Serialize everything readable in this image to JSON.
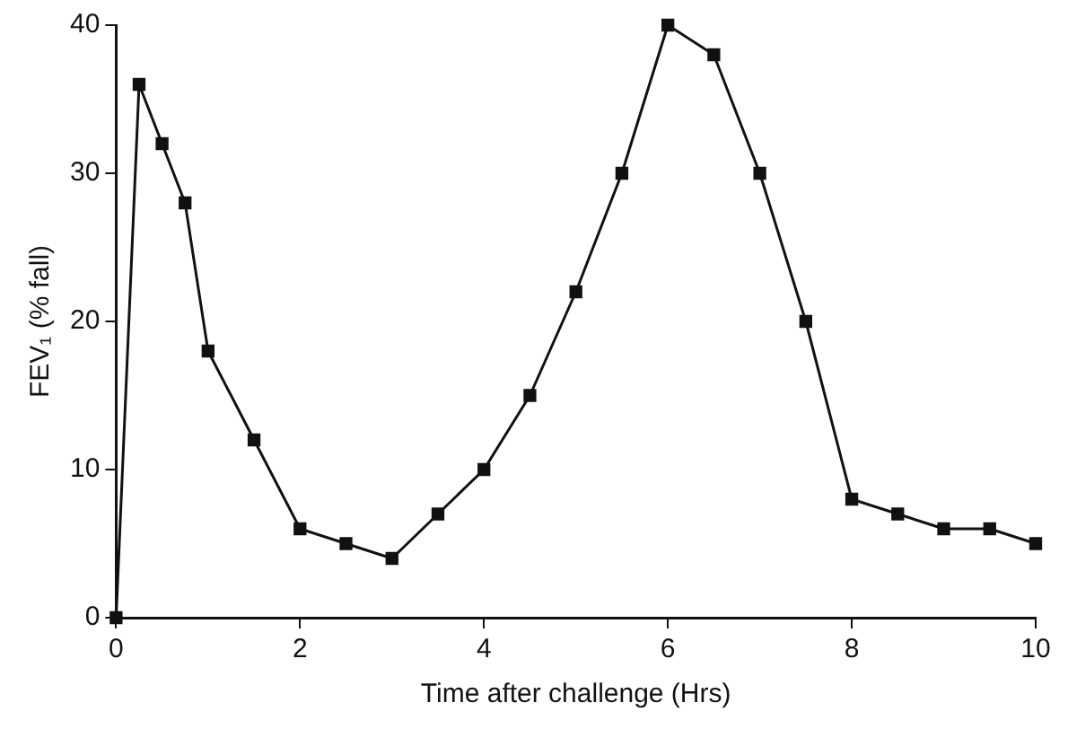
{
  "chart_data": {
    "type": "line",
    "xlabel": "Time after challenge (Hrs)",
    "ylabel": "FEV₁ (% fall)",
    "series": [
      {
        "color": "#111111",
        "x": [
          0,
          0.25,
          0.5,
          0.75,
          1,
          1.5,
          2,
          2.5,
          3,
          3.5,
          4,
          4.5,
          5,
          5.5,
          6,
          6.5,
          7,
          7.5,
          8,
          8.5,
          9,
          9.5,
          10
        ],
        "values": [
          0,
          36,
          32,
          28,
          18,
          12,
          6,
          5,
          4,
          7,
          10,
          15,
          22,
          30,
          40,
          38,
          30,
          20,
          8,
          7,
          6,
          6,
          5
        ]
      }
    ],
    "xlim": [
      0,
      10
    ],
    "xticks": [
      0,
      2,
      4,
      6,
      8,
      10
    ],
    "ylim": [
      0,
      40
    ],
    "yticks": [
      0,
      10,
      20,
      30,
      40
    ],
    "grid": false,
    "legend": false,
    "marker": "square",
    "line_style": "solid"
  }
}
